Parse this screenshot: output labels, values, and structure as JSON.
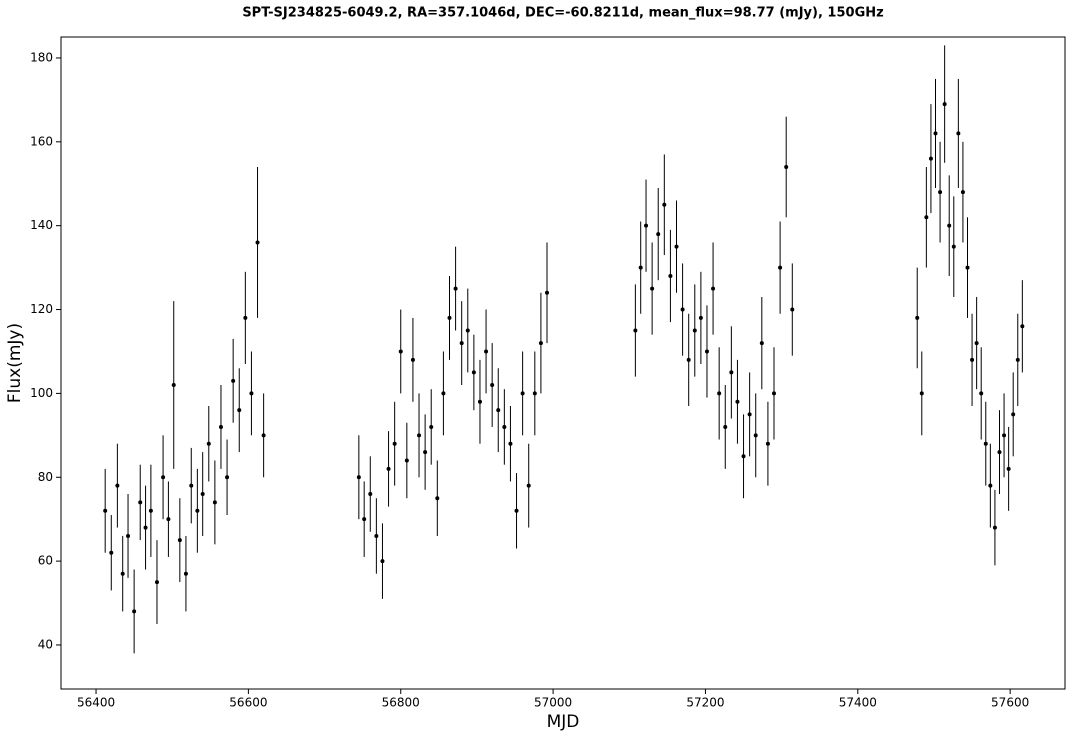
{
  "chart_data": {
    "type": "scatter",
    "title": "SPT-SJ234825-6049.2, RA=357.1046d, DEC=-60.8211d, mean_flux=98.77 (mJy), 150GHz",
    "xlabel": "MJD",
    "ylabel": "Flux(mJy)",
    "color": "#000000",
    "xlim": [
      56354,
      57672
    ],
    "ylim": [
      29.5,
      185
    ],
    "xticks": [
      56400,
      56600,
      56800,
      57000,
      57200,
      57400,
      57600
    ],
    "yticks": [
      40,
      60,
      80,
      100,
      120,
      140,
      160,
      180
    ],
    "x": [
      56412,
      56420,
      56428,
      56435,
      56442,
      56450,
      56458,
      56465,
      56472,
      56480,
      56488,
      56495,
      56502,
      56510,
      56518,
      56525,
      56533,
      56540,
      56548,
      56556,
      56564,
      56572,
      56580,
      56588,
      56596,
      56604,
      56612,
      56620,
      56745,
      56752,
      56760,
      56768,
      56776,
      56784,
      56792,
      56800,
      56808,
      56816,
      56824,
      56832,
      56840,
      56848,
      56856,
      56864,
      56872,
      56880,
      56888,
      56896,
      56904,
      56912,
      56920,
      56928,
      56936,
      56944,
      56952,
      56960,
      56968,
      56976,
      56984,
      56992,
      57108,
      57115,
      57122,
      57130,
      57138,
      57146,
      57154,
      57162,
      57170,
      57178,
      57186,
      57194,
      57202,
      57210,
      57218,
      57226,
      57234,
      57242,
      57250,
      57258,
      57266,
      57274,
      57282,
      57290,
      57298,
      57306,
      57314,
      57478,
      57484,
      57490,
      57496,
      57502,
      57508,
      57514,
      57520,
      57526,
      57532,
      57538,
      57544,
      57550,
      57556,
      57562,
      57568,
      57574,
      57580,
      57586,
      57592,
      57598,
      57604,
      57610,
      57616
    ],
    "values": [
      72,
      62,
      78,
      57,
      66,
      48,
      74,
      68,
      72,
      55,
      80,
      70,
      102,
      65,
      57,
      78,
      72,
      76,
      88,
      74,
      92,
      80,
      103,
      96,
      118,
      100,
      136,
      90,
      80,
      70,
      76,
      66,
      60,
      82,
      88,
      110,
      84,
      108,
      90,
      86,
      92,
      75,
      100,
      118,
      125,
      112,
      115,
      105,
      98,
      110,
      102,
      96,
      92,
      88,
      72,
      100,
      78,
      100,
      112,
      124,
      115,
      130,
      140,
      125,
      138,
      145,
      128,
      135,
      120,
      108,
      115,
      118,
      110,
      125,
      100,
      92,
      105,
      98,
      85,
      95,
      90,
      112,
      88,
      100,
      130,
      154,
      120,
      118,
      100,
      142,
      156,
      162,
      148,
      169,
      140,
      135,
      162,
      148,
      130,
      108,
      112,
      100,
      88,
      78,
      68,
      86,
      90,
      82,
      95,
      108,
      116
    ],
    "errors": [
      10,
      9,
      10,
      9,
      10,
      10,
      9,
      10,
      11,
      10,
      10,
      9,
      20,
      10,
      9,
      9,
      10,
      10,
      9,
      10,
      10,
      9,
      10,
      10,
      11,
      10,
      18,
      10,
      10,
      9,
      9,
      9,
      9,
      9,
      10,
      10,
      9,
      10,
      10,
      9,
      9,
      9,
      10,
      10,
      10,
      10,
      10,
      9,
      10,
      10,
      10,
      10,
      9,
      9,
      9,
      10,
      10,
      10,
      12,
      12,
      11,
      11,
      11,
      11,
      11,
      12,
      11,
      11,
      11,
      11,
      11,
      11,
      11,
      11,
      11,
      10,
      11,
      10,
      10,
      10,
      10,
      11,
      10,
      11,
      11,
      12,
      11,
      12,
      10,
      12,
      13,
      13,
      12,
      14,
      12,
      12,
      13,
      12,
      12,
      11,
      11,
      11,
      10,
      10,
      9,
      10,
      10,
      10,
      10,
      11,
      11
    ]
  }
}
